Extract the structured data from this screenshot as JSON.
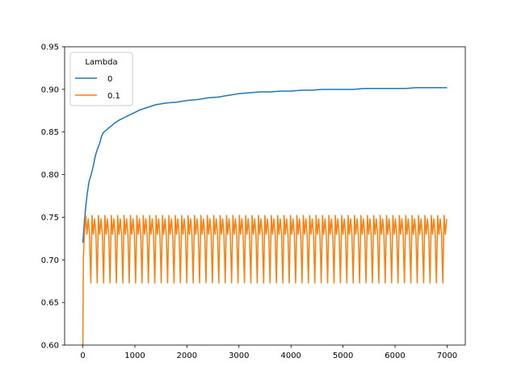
{
  "chart_data": {
    "type": "line",
    "title": "",
    "xlabel": "",
    "ylabel": "",
    "xlim": [
      -350,
      7350
    ],
    "ylim": [
      0.6,
      0.95
    ],
    "xticks": [
      0,
      1000,
      2000,
      3000,
      4000,
      5000,
      6000,
      7000
    ],
    "yticks": [
      0.6,
      0.65,
      0.7,
      0.75,
      0.8,
      0.85,
      0.9,
      0.95
    ],
    "xtick_labels": [
      "0",
      "1000",
      "2000",
      "3000",
      "4000",
      "5000",
      "6000",
      "7000"
    ],
    "ytick_labels": [
      "0.60",
      "0.65",
      "0.70",
      "0.75",
      "0.80",
      "0.85",
      "0.90",
      "0.95"
    ],
    "grid": false,
    "legend": {
      "title": "Lambda",
      "position": "top-left"
    },
    "series": [
      {
        "name": "0",
        "color": "#1f77b4",
        "points": [
          [
            0,
            0.72
          ],
          [
            30,
            0.745
          ],
          [
            60,
            0.765
          ],
          [
            90,
            0.78
          ],
          [
            120,
            0.792
          ],
          [
            160,
            0.8
          ],
          [
            200,
            0.81
          ],
          [
            240,
            0.822
          ],
          [
            280,
            0.83
          ],
          [
            320,
            0.836
          ],
          [
            360,
            0.845
          ],
          [
            400,
            0.85
          ],
          [
            450,
            0.852
          ],
          [
            500,
            0.855
          ],
          [
            550,
            0.857
          ],
          [
            600,
            0.86
          ],
          [
            650,
            0.862
          ],
          [
            700,
            0.864
          ],
          [
            800,
            0.867
          ],
          [
            900,
            0.87
          ],
          [
            1000,
            0.873
          ],
          [
            1100,
            0.876
          ],
          [
            1200,
            0.878
          ],
          [
            1300,
            0.88
          ],
          [
            1400,
            0.882
          ],
          [
            1500,
            0.883
          ],
          [
            1600,
            0.884
          ],
          [
            1800,
            0.885
          ],
          [
            2000,
            0.887
          ],
          [
            2200,
            0.888
          ],
          [
            2400,
            0.89
          ],
          [
            2600,
            0.891
          ],
          [
            2800,
            0.893
          ],
          [
            3000,
            0.895
          ],
          [
            3200,
            0.896
          ],
          [
            3400,
            0.897
          ],
          [
            3600,
            0.897
          ],
          [
            3800,
            0.898
          ],
          [
            4000,
            0.898
          ],
          [
            4200,
            0.899
          ],
          [
            4400,
            0.899
          ],
          [
            4600,
            0.9
          ],
          [
            4800,
            0.9
          ],
          [
            5000,
            0.9
          ],
          [
            5200,
            0.9
          ],
          [
            5400,
            0.901
          ],
          [
            5600,
            0.901
          ],
          [
            5800,
            0.901
          ],
          [
            6000,
            0.901
          ],
          [
            6200,
            0.901
          ],
          [
            6400,
            0.902
          ],
          [
            6600,
            0.902
          ],
          [
            6800,
            0.902
          ],
          [
            7000,
            0.902
          ]
        ]
      },
      {
        "name": "0.1",
        "color": "#ff7f0e",
        "start": [
          [
            0,
            0.6
          ],
          [
            10,
            0.7
          ],
          [
            30,
            0.73
          ]
        ],
        "period": 123,
        "cycle": [
          0.752,
          0.73,
          0.748,
          0.73,
          0.673
        ],
        "x_end": 7000
      }
    ]
  }
}
